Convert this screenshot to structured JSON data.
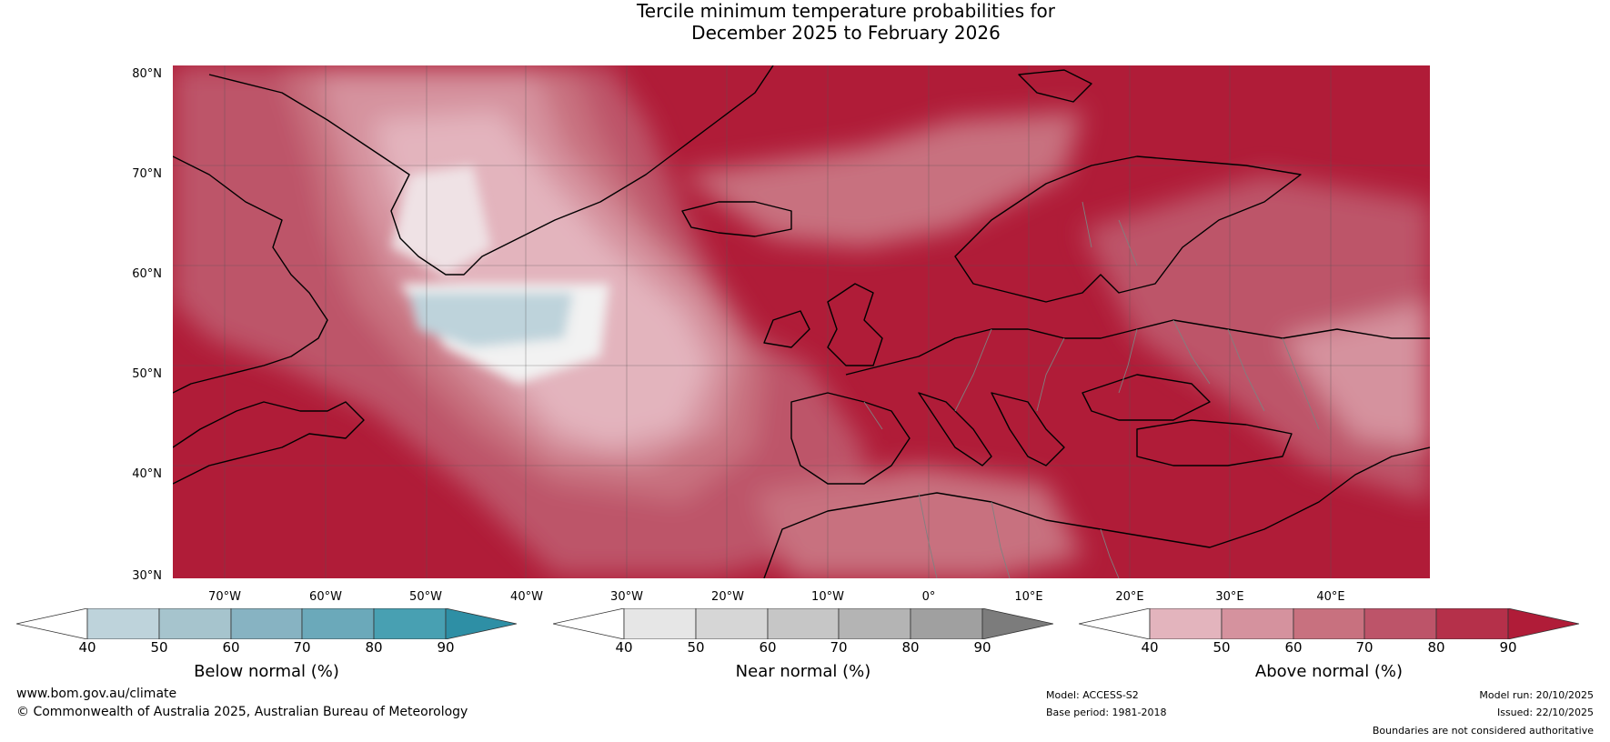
{
  "title": {
    "line1": "Tercile minimum temperature probabilities for",
    "line2": "December 2025 to February 2026"
  },
  "map": {
    "lat_labels": [
      "80°N",
      "70°N",
      "60°N",
      "50°N",
      "40°N",
      "30°N"
    ],
    "lon_labels": [
      "70°W",
      "60°W",
      "50°W",
      "40°W",
      "30°W",
      "20°W",
      "10°W",
      "0°",
      "10°E",
      "20°E",
      "30°E",
      "40°E"
    ]
  },
  "legends": [
    {
      "title": "Below normal (%)",
      "ticks": [
        "40",
        "50",
        "60",
        "70",
        "80",
        "90"
      ],
      "colors": [
        "#ffffff",
        "#bed3db",
        "#a6c4cd",
        "#87b3c2",
        "#6ba9ba",
        "#48a0b2",
        "#2e8fa5"
      ]
    },
    {
      "title": "Near normal (%)",
      "ticks": [
        "40",
        "50",
        "60",
        "70",
        "80",
        "90"
      ],
      "colors": [
        "#ffffff",
        "#e6e6e6",
        "#d6d6d6",
        "#c6c6c6",
        "#b4b4b4",
        "#a0a0a0",
        "#7c7c7c"
      ]
    },
    {
      "title": "Above normal (%)",
      "ticks": [
        "40",
        "50",
        "60",
        "70",
        "80",
        "90"
      ],
      "colors": [
        "#ffffff",
        "#e3b4bd",
        "#d5929e",
        "#c8717f",
        "#bd5469",
        "#b5304a",
        "#b01c38"
      ]
    }
  ],
  "footer": {
    "website": "www.bom.gov.au/climate",
    "copyright": "© Commonwealth of Australia 2025, Australian Bureau of Meteorology",
    "model": "Model: ACCESS-S2",
    "base_period": "Base period: 1981-2018",
    "model_run": "Model run: 20/10/2025",
    "issued": "Issued: 22/10/2025",
    "disclaimer": "Boundaries are not considered authoritative"
  }
}
